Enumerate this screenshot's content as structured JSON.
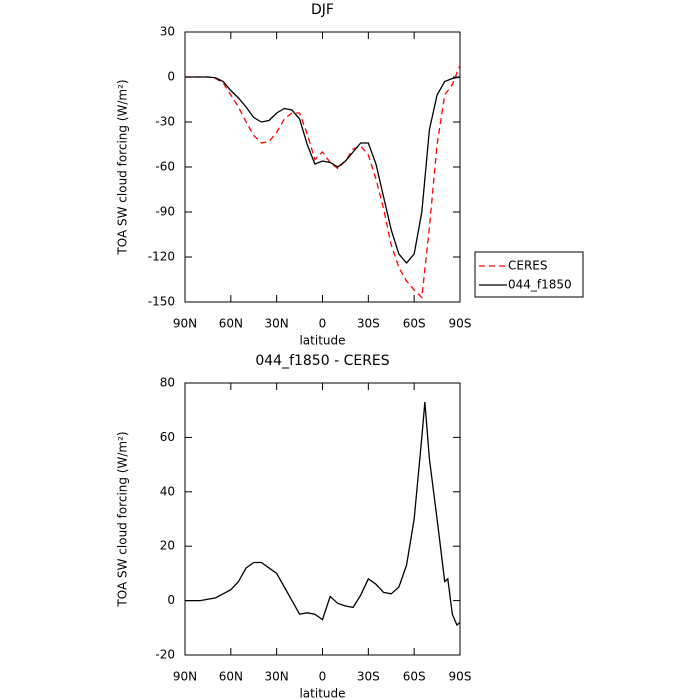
{
  "chart_data": [
    {
      "type": "line",
      "title": "DJF",
      "xlabel": "latitude",
      "ylabel": "TOA SW cloud forcing (W/m²)",
      "x": [
        90,
        85,
        80,
        75,
        70,
        65,
        60,
        55,
        50,
        45,
        40,
        35,
        30,
        25,
        20,
        15,
        10,
        5,
        0,
        -5,
        -10,
        -15,
        -20,
        -25,
        -30,
        -35,
        -40,
        -45,
        -50,
        -55,
        -60,
        -65,
        -70,
        -75,
        -80,
        -85,
        -90
      ],
      "series": [
        {
          "name": "CERES",
          "color": "#ff0000",
          "linestyle": "dashed",
          "values": [
            0,
            0,
            0,
            0,
            -1,
            -4,
            -12,
            -20,
            -30,
            -39,
            -44,
            -43,
            -37,
            -28,
            -24,
            -24,
            -38,
            -55,
            -50,
            -57,
            -61,
            -56,
            -48,
            -46,
            -52,
            -68,
            -88,
            -112,
            -127,
            -136,
            -142,
            -147,
            -100,
            -45,
            -12,
            -5,
            8
          ]
        },
        {
          "name": "044_f1850",
          "color": "#000000",
          "linestyle": "solid",
          "values": [
            0,
            0,
            0,
            0,
            -0.5,
            -3,
            -9,
            -14,
            -20,
            -27,
            -30,
            -29,
            -24,
            -21,
            -22,
            -28,
            -45,
            -58,
            -56,
            -57,
            -60,
            -56,
            -50,
            -44,
            -44,
            -58,
            -80,
            -102,
            -118,
            -124,
            -118,
            -90,
            -35,
            -12,
            -3,
            -1,
            0
          ]
        }
      ],
      "xlim": [
        90,
        -90
      ],
      "xticks": [
        {
          "value": 90,
          "label": "90N"
        },
        {
          "value": 60,
          "label": "60N"
        },
        {
          "value": 30,
          "label": "30N"
        },
        0,
        {
          "value": -30,
          "label": "30S"
        },
        {
          "value": -60,
          "label": "60S"
        },
        {
          "value": -90,
          "label": "90S"
        }
      ],
      "ylim": [
        -150,
        30
      ],
      "yticks": [
        30,
        0,
        -30,
        -60,
        -90,
        -120,
        -150
      ],
      "legend": "right"
    },
    {
      "type": "line",
      "title": "044_f1850 - CERES",
      "xlabel": "latitude",
      "ylabel": "TOA SW cloud forcing (W/m²)",
      "x": [
        90,
        85,
        80,
        75,
        70,
        65,
        60,
        55,
        50,
        45,
        40,
        35,
        30,
        25,
        20,
        15,
        10,
        5,
        0,
        -5,
        -10,
        -15,
        -20,
        -25,
        -30,
        -35,
        -40,
        -45,
        -50,
        -55,
        -60,
        -65,
        -67,
        -70,
        -75,
        -80,
        -82,
        -85,
        -88,
        -90
      ],
      "series": [
        {
          "color": "#000000",
          "linestyle": "solid",
          "values": [
            0,
            0,
            0,
            0.5,
            1,
            2.5,
            4,
            7,
            12,
            14,
            14,
            12,
            10,
            5,
            0,
            -5,
            -4.5,
            -5,
            -7,
            1.5,
            -1,
            -2,
            -2.5,
            2,
            8,
            6,
            3,
            2.5,
            5,
            13,
            30,
            60,
            73,
            52,
            30,
            7,
            8,
            -5,
            -9,
            -8
          ]
        }
      ],
      "xlim": [
        90,
        -90
      ],
      "xticks": [
        {
          "value": 90,
          "label": "90N"
        },
        {
          "value": 60,
          "label": "60N"
        },
        {
          "value": 30,
          "label": "30N"
        },
        0,
        {
          "value": -30,
          "label": "30S"
        },
        {
          "value": -60,
          "label": "60S"
        },
        {
          "value": -90,
          "label": "90S"
        }
      ],
      "ylim": [
        -20,
        80
      ],
      "yticks": [
        -20,
        0,
        20,
        40,
        60,
        80
      ]
    }
  ]
}
